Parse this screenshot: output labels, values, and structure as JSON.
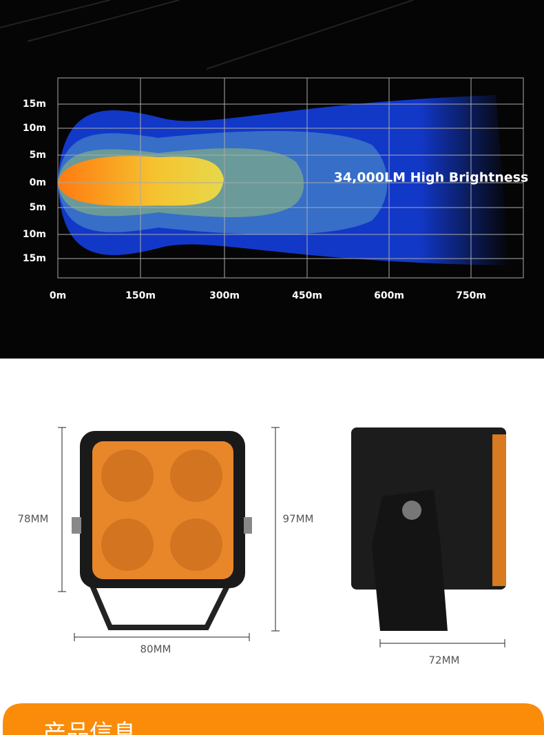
{
  "beam_chart": {
    "y_labels": [
      "15m",
      "10m",
      "5m",
      "0m",
      "5m",
      "10m",
      "15m"
    ],
    "x_labels": [
      "0m",
      "150m",
      "300m",
      "450m",
      "600m",
      "750m"
    ],
    "annotation": "34,000LM High Brightness"
  },
  "dimensions": {
    "front_height": "78MM",
    "front_total_height": "97MM",
    "front_width": "80MM",
    "side_depth": "72MM"
  },
  "section_title": "产品信息"
}
